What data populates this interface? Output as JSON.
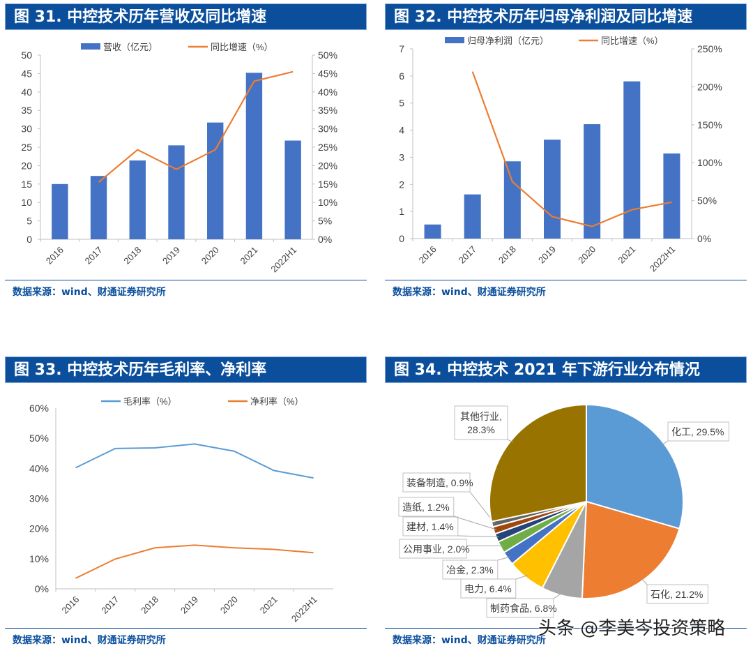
{
  "figures": [
    {
      "title": "图 31. 中控技术历年营收及同比增速",
      "source": "数据来源：wind、财通证券研究所"
    },
    {
      "title": "图 32. 中控技术历年归母净利润及同比增速",
      "source": "数据来源：wind、财通证券研究所"
    },
    {
      "title": "图 33. 中控技术历年毛利率、净利率",
      "source": "数据来源：wind、财通证券研究所"
    },
    {
      "title": "图 34. 中控技术 2021 年下游行业分布情况",
      "source": "数据来源：wind、财通证券研究所"
    }
  ],
  "watermark": "头条 @李美岑投资策略",
  "chart_data": [
    {
      "type": "bar+line",
      "categories": [
        "2016",
        "2017",
        "2018",
        "2019",
        "2020",
        "2021",
        "2022H1"
      ],
      "series": [
        {
          "name": "营收（亿元）",
          "type": "bar",
          "axis": "left",
          "color": "#4472c4",
          "values": [
            15.0,
            17.2,
            21.4,
            25.5,
            31.7,
            45.2,
            26.8
          ]
        },
        {
          "name": "同比增速（%）",
          "type": "line",
          "axis": "right",
          "color": "#ed7d31",
          "values": [
            null,
            15.5,
            24.3,
            19.0,
            24.3,
            42.9,
            45.5
          ]
        }
      ],
      "ylim": [
        0,
        50
      ],
      "yticks": [
        "0",
        "5",
        "10",
        "15",
        "20",
        "25",
        "30",
        "35",
        "40",
        "45",
        "50"
      ],
      "y2lim": [
        0,
        50
      ],
      "y2ticks": [
        "0%",
        "5%",
        "10%",
        "15%",
        "20%",
        "25%",
        "30%",
        "35%",
        "40%",
        "45%",
        "50%"
      ],
      "legend": "top",
      "grid": false
    },
    {
      "type": "bar+line",
      "categories": [
        "2016",
        "2017",
        "2018",
        "2019",
        "2020",
        "2021",
        "2022H1"
      ],
      "series": [
        {
          "name": "归母净利润（亿元）",
          "type": "bar",
          "axis": "left",
          "color": "#4472c4",
          "values": [
            0.52,
            1.63,
            2.85,
            3.65,
            4.22,
            5.8,
            3.14
          ]
        },
        {
          "name": "同比增速（%）",
          "type": "line",
          "axis": "right",
          "color": "#ed7d31",
          "values": [
            null,
            220,
            75,
            29,
            16,
            38,
            48
          ]
        }
      ],
      "ylim": [
        0,
        7
      ],
      "yticks": [
        "0",
        "1",
        "2",
        "3",
        "4",
        "5",
        "6",
        "7"
      ],
      "y2lim": [
        0,
        250
      ],
      "y2ticks": [
        "0%",
        "50%",
        "100%",
        "150%",
        "200%",
        "250%"
      ],
      "legend": "top",
      "grid": false
    },
    {
      "type": "line",
      "categories": [
        "2016",
        "2017",
        "2018",
        "2019",
        "2020",
        "2021",
        "2022H1"
      ],
      "series": [
        {
          "name": "毛利率（%）",
          "color": "#5b9bd5",
          "values": [
            40.2,
            46.6,
            46.8,
            48.1,
            45.7,
            39.3,
            36.8
          ]
        },
        {
          "name": "净利率（%）",
          "color": "#ed7d31",
          "values": [
            3.5,
            9.9,
            13.6,
            14.5,
            13.6,
            13.1,
            12.0
          ]
        }
      ],
      "ylim": [
        0,
        60
      ],
      "yticks": [
        "0%",
        "10%",
        "20%",
        "30%",
        "40%",
        "50%",
        "60%"
      ],
      "legend": "top",
      "grid": false
    },
    {
      "type": "pie",
      "slices": [
        {
          "label": "化工, 29.5%",
          "value": 29.5,
          "color": "#5b9bd5"
        },
        {
          "label": "石化, 21.2%",
          "value": 21.2,
          "color": "#ed7d31"
        },
        {
          "label": "制药食品, 6.8%",
          "value": 6.8,
          "color": "#a5a5a5"
        },
        {
          "label": "电力, 6.4%",
          "value": 6.4,
          "color": "#ffc000"
        },
        {
          "label": "冶金, 2.3%",
          "value": 2.3,
          "color": "#4472c4"
        },
        {
          "label": "公用事业, 2.0%",
          "value": 2.0,
          "color": "#70ad47"
        },
        {
          "label": "建材, 1.4%",
          "value": 1.4,
          "color": "#264478"
        },
        {
          "label": "造纸, 1.2%",
          "value": 1.2,
          "color": "#9e480e"
        },
        {
          "label": "装备制造, 0.9%",
          "value": 0.9,
          "color": "#636363"
        },
        {
          "label": "其他行业, 28.3%",
          "value": 28.3,
          "color": "#997300"
        }
      ]
    }
  ]
}
